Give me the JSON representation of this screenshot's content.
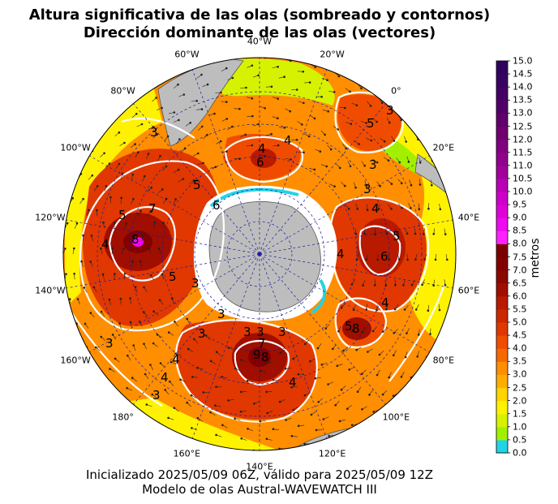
{
  "title_line1": "Altura significativa de las olas (sombreado y contornos)",
  "title_line2": "Dirección dominante de las olas (vectores)",
  "footer_line1": "Inicializado 2025/05/09 06Z, válido para 2025/05/09 12Z",
  "footer_line2": "Modelo de olas Austral-WAVEWATCH III",
  "colorbar": {
    "label": "metros",
    "ticks": [
      "0.0",
      "0.5",
      "1.0",
      "1.5",
      "2.0",
      "2.5",
      "3.0",
      "3.5",
      "4.0",
      "4.5",
      "5.0",
      "5.5",
      "6.0",
      "6.5",
      "7.0",
      "7.5",
      "8.0",
      "8.5",
      "9.0",
      "9.5",
      "10.0",
      "10.5",
      "11.0",
      "11.5",
      "12.0",
      "12.5",
      "13.0",
      "13.5",
      "14.0",
      "14.5",
      "15.0"
    ],
    "colors": [
      "#22d3e6",
      "#a2f000",
      "#d6f200",
      "#fff200",
      "#ffd400",
      "#ffae00",
      "#ff8e00",
      "#f86800",
      "#f04c00",
      "#e03800",
      "#cc2800",
      "#b81a00",
      "#a00e00",
      "#8a0800",
      "#820000",
      "#7a0000",
      "#ff20ff",
      "#f008f0",
      "#e000d8",
      "#cc00c8",
      "#b800b4",
      "#a0009c",
      "#90008c",
      "#800080",
      "#700070",
      "#60006a",
      "#500068",
      "#440064",
      "#380060",
      "#300060"
    ]
  },
  "longitude_labels": [
    {
      "text": "40°W"
    },
    {
      "text": "20°W"
    },
    {
      "text": "0°"
    },
    {
      "text": "20°E"
    },
    {
      "text": "40°E"
    },
    {
      "text": "60°E"
    },
    {
      "text": "80°E"
    },
    {
      "text": "100°E"
    },
    {
      "text": "120°E"
    },
    {
      "text": "140°E"
    },
    {
      "text": "160°E"
    },
    {
      "text": "180°"
    },
    {
      "text": "160°W"
    },
    {
      "text": "140°W"
    },
    {
      "text": "120°W"
    },
    {
      "text": "100°W"
    },
    {
      "text": "80°W"
    },
    {
      "text": "60°W"
    }
  ],
  "contour_labels": [
    "3",
    "4",
    "5",
    "6",
    "7",
    "8",
    "9"
  ],
  "colors": {
    "land": "#bdbdbd",
    "ice": "#ffffff",
    "contour": "#ffffff",
    "graticule": "#1a1aa0"
  }
}
